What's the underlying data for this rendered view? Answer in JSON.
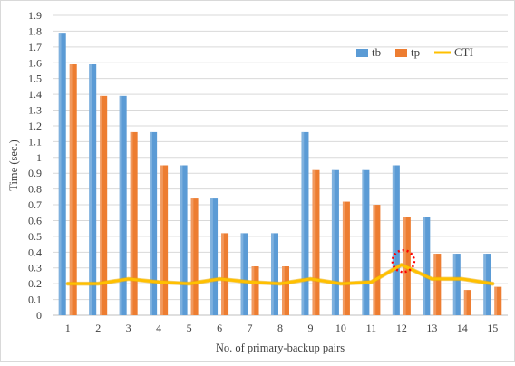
{
  "chart_data": {
    "type": "bar",
    "title": "",
    "xlabel": "No. of primary-backup pairs",
    "ylabel": "Time (sec.)",
    "categories": [
      "1",
      "2",
      "3",
      "4",
      "5",
      "6",
      "7",
      "8",
      "9",
      "10",
      "11",
      "12",
      "13",
      "14",
      "15"
    ],
    "ylim": [
      0,
      1.9
    ],
    "yticks": [
      "0",
      "0.1",
      "0.2",
      "0.3",
      "0.4",
      "0.5",
      "0.6",
      "0.7",
      "0.8",
      "0.9",
      "1",
      "1.1",
      "1.2",
      "1.3",
      "1.4",
      "1.5",
      "1.6",
      "1.7",
      "1.8",
      "1.9"
    ],
    "grid": true,
    "legend_position": "top-right",
    "series": [
      {
        "name": "tb",
        "type": "bar",
        "color": "#5b9bd5",
        "values": [
          1.79,
          1.59,
          1.39,
          1.16,
          0.95,
          0.74,
          0.52,
          0.52,
          1.16,
          0.92,
          0.92,
          0.95,
          0.62,
          0.39,
          0.39
        ]
      },
      {
        "name": "tp",
        "type": "bar",
        "color": "#ed7d31",
        "values": [
          1.59,
          1.39,
          1.16,
          0.95,
          0.74,
          0.52,
          0.31,
          0.31,
          0.92,
          0.72,
          0.7,
          0.62,
          0.39,
          0.16,
          0.18
        ]
      },
      {
        "name": "CTI",
        "type": "line",
        "color": "#ffc000",
        "values": [
          0.2,
          0.2,
          0.23,
          0.21,
          0.2,
          0.23,
          0.21,
          0.2,
          0.23,
          0.2,
          0.21,
          0.32,
          0.23,
          0.23,
          0.2
        ]
      }
    ],
    "annotation": {
      "type": "dashed-circle",
      "color": "#ff0000",
      "category": "12"
    }
  }
}
